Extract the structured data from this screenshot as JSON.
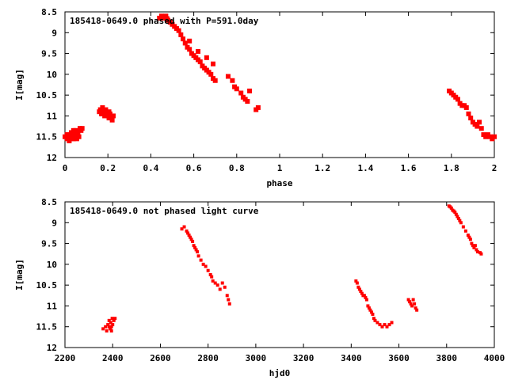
{
  "chart_data": [
    {
      "type": "scatter",
      "title": "185418-0649.0 phased with P=591.0day",
      "xlabel": "phase",
      "ylabel": "I[mag]",
      "xlim": [
        0,
        2
      ],
      "ylim": [
        8.5,
        12
      ],
      "y_inverted": true,
      "xticks": [
        "0",
        "0.2",
        "0.4",
        "0.6",
        "0.8",
        "1",
        "1.2",
        "1.4",
        "1.6",
        "1.8",
        "2"
      ],
      "yticks": [
        "8.5",
        "9",
        "9.5",
        "10",
        "10.5",
        "11",
        "11.5",
        "12"
      ],
      "marker_color": "#ff0000",
      "x": [
        0.0,
        0.01,
        0.015,
        0.02,
        0.025,
        0.03,
        0.035,
        0.04,
        0.045,
        0.05,
        0.055,
        0.06,
        0.065,
        0.07,
        0.075,
        0.08,
        0.01,
        0.02,
        0.03,
        0.04,
        0.05,
        0.06,
        0.16,
        0.165,
        0.17,
        0.175,
        0.18,
        0.185,
        0.19,
        0.195,
        0.2,
        0.205,
        0.21,
        0.215,
        0.22,
        0.225,
        0.175,
        0.19,
        0.205,
        0.44,
        0.45,
        0.455,
        0.46,
        0.47,
        0.475,
        0.48,
        0.49,
        0.5,
        0.51,
        0.52,
        0.53,
        0.54,
        0.55,
        0.56,
        0.57,
        0.58,
        0.59,
        0.6,
        0.61,
        0.62,
        0.63,
        0.64,
        0.65,
        0.66,
        0.67,
        0.68,
        0.69,
        0.7,
        0.58,
        0.62,
        0.66,
        0.69,
        0.76,
        0.78,
        0.79,
        0.8,
        0.82,
        0.83,
        0.84,
        0.85,
        0.86,
        0.89,
        0.9,
        1.79,
        1.8,
        1.81,
        1.82,
        1.83,
        1.84,
        1.85,
        1.86,
        1.87,
        1.88,
        1.89,
        1.9,
        1.91,
        1.92,
        1.93,
        1.94,
        1.95,
        1.96,
        1.97,
        1.98,
        1.99,
        2.0
      ],
      "y": [
        11.5,
        11.55,
        11.45,
        11.6,
        11.5,
        11.4,
        11.55,
        11.35,
        11.5,
        11.45,
        11.55,
        11.4,
        11.5,
        11.3,
        11.35,
        11.3,
        11.45,
        11.5,
        11.4,
        11.55,
        11.35,
        11.45,
        10.9,
        10.85,
        10.95,
        10.8,
        10.9,
        11.0,
        10.85,
        10.95,
        11.0,
        10.9,
        10.95,
        11.05,
        11.1,
        11.0,
        10.95,
        10.9,
        11.05,
        8.65,
        8.6,
        8.62,
        8.65,
        8.6,
        8.66,
        8.7,
        8.75,
        8.8,
        8.85,
        8.9,
        8.95,
        9.05,
        9.15,
        9.25,
        9.35,
        9.4,
        9.5,
        9.55,
        9.6,
        9.65,
        9.7,
        9.8,
        9.85,
        9.9,
        9.95,
        10.0,
        10.1,
        10.15,
        9.2,
        9.45,
        9.6,
        9.75,
        10.05,
        10.15,
        10.3,
        10.35,
        10.45,
        10.55,
        10.6,
        10.65,
        10.4,
        10.85,
        10.8,
        10.4,
        10.45,
        10.5,
        10.55,
        10.6,
        10.7,
        10.75,
        10.75,
        10.8,
        10.95,
        11.05,
        11.15,
        11.2,
        11.25,
        11.15,
        11.3,
        11.45,
        11.5,
        11.45,
        11.5,
        11.55,
        11.5
      ]
    },
    {
      "type": "scatter",
      "title": "185418-0649.0 not phased light curve",
      "xlabel": "hjd0",
      "ylabel": "I[mag]",
      "xlim": [
        2200,
        4000
      ],
      "ylim": [
        8.5,
        12
      ],
      "y_inverted": true,
      "xticks": [
        "2200",
        "2400",
        "2600",
        "2800",
        "3000",
        "3200",
        "3400",
        "3600",
        "3800",
        "4000"
      ],
      "yticks": [
        "8.5",
        "9",
        "9.5",
        "10",
        "10.5",
        "11",
        "11.5",
        "12"
      ],
      "marker_color": "#ff0000",
      "x": [
        2360,
        2370,
        2375,
        2380,
        2385,
        2390,
        2392,
        2395,
        2398,
        2400,
        2405,
        2410,
        2385,
        2395,
        2690,
        2700,
        2710,
        2715,
        2720,
        2725,
        2730,
        2735,
        2740,
        2745,
        2750,
        2755,
        2760,
        2770,
        2780,
        2790,
        2800,
        2810,
        2815,
        2820,
        2830,
        2840,
        2850,
        2860,
        2870,
        2880,
        2885,
        2890,
        3420,
        3425,
        3430,
        3435,
        3440,
        3445,
        3450,
        3455,
        3460,
        3465,
        3470,
        3475,
        3480,
        3485,
        3490,
        3495,
        3500,
        3510,
        3520,
        3530,
        3540,
        3550,
        3560,
        3570,
        3640,
        3645,
        3650,
        3655,
        3660,
        3665,
        3670,
        3675,
        3810,
        3815,
        3820,
        3825,
        3830,
        3835,
        3840,
        3845,
        3850,
        3855,
        3860,
        3870,
        3880,
        3890,
        3895,
        3900,
        3905,
        3910,
        3915,
        3920,
        3925,
        3930,
        3940,
        3945
      ],
      "y": [
        11.55,
        11.5,
        11.6,
        11.45,
        11.35,
        11.55,
        11.4,
        11.5,
        11.3,
        11.45,
        11.35,
        11.3,
        11.5,
        11.6,
        9.15,
        9.1,
        9.2,
        9.25,
        9.3,
        9.35,
        9.4,
        9.45,
        9.55,
        9.6,
        9.65,
        9.7,
        9.8,
        9.9,
        10.0,
        10.05,
        10.15,
        10.25,
        10.3,
        10.4,
        10.45,
        10.5,
        10.6,
        10.45,
        10.55,
        10.75,
        10.85,
        10.95,
        10.4,
        10.45,
        10.55,
        10.6,
        10.65,
        10.7,
        10.75,
        10.75,
        10.8,
        10.85,
        11.0,
        11.05,
        11.1,
        11.15,
        11.2,
        11.3,
        11.35,
        11.4,
        11.45,
        11.5,
        11.45,
        11.5,
        11.45,
        11.4,
        10.85,
        10.9,
        10.95,
        11.0,
        10.85,
        10.95,
        11.05,
        11.1,
        8.6,
        8.62,
        8.65,
        8.7,
        8.72,
        8.75,
        8.8,
        8.85,
        8.9,
        8.95,
        9.0,
        9.1,
        9.2,
        9.3,
        9.35,
        9.4,
        9.5,
        9.55,
        9.6,
        9.55,
        9.65,
        9.7,
        9.72,
        9.75
      ]
    }
  ]
}
